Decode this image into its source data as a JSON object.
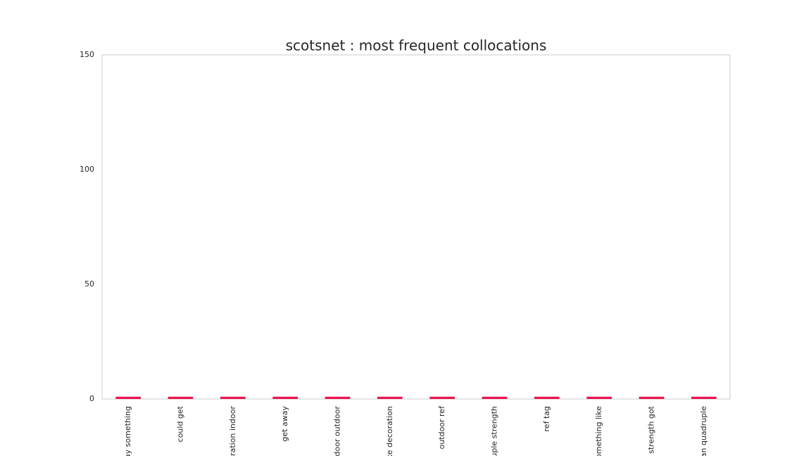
{
  "chart_data": {
    "type": "bar",
    "title": "scotsnet : most frequent collocations",
    "categories": [
      "way something",
      "could get",
      "coration indoor",
      "get away",
      "indoor outdoor",
      "like decoration",
      "outdoor ref",
      "druple strength",
      "ref tag",
      "something like",
      "strength got",
      "rian quadruple"
    ],
    "values": [
      1,
      1,
      1,
      1,
      1,
      1,
      1,
      1,
      1,
      1,
      1,
      1
    ],
    "color": "#e8184f",
    "ylim": [
      0,
      150
    ],
    "yticks": [
      0,
      50,
      100,
      150
    ],
    "grid": false
  }
}
